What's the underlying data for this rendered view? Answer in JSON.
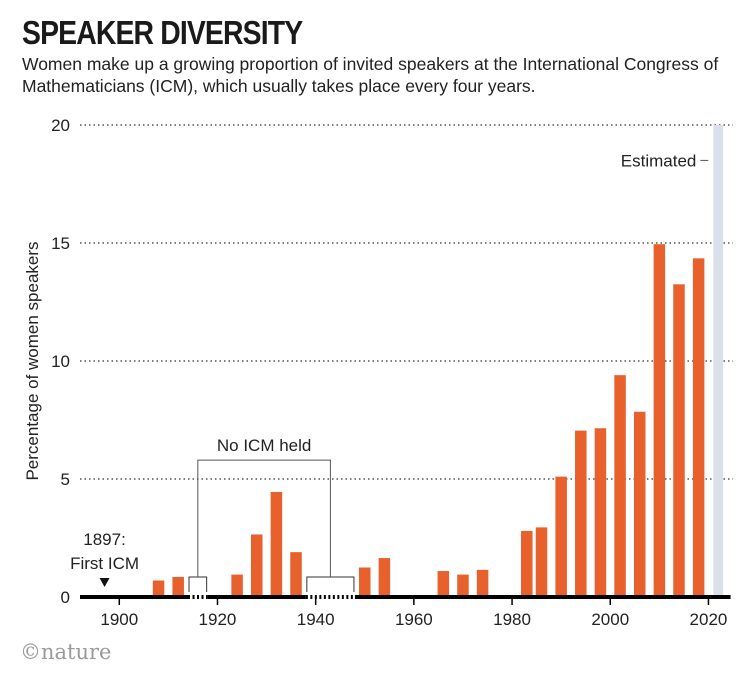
{
  "title": "SPEAKER DIVERSITY",
  "subtitle": "Women make up a growing proportion of invited speakers at the International Congress of Mathematicians (ICM), which usually takes place every four years.",
  "logo_text": "©nature",
  "chart_data": {
    "type": "bar",
    "ylabel": "Percentage of women speakers",
    "xlabel": "",
    "xlim": [
      1892,
      2025
    ],
    "ylim": [
      0,
      20
    ],
    "x_ticks": [
      1900,
      1920,
      1940,
      1960,
      1980,
      2000,
      2020
    ],
    "y_ticks": [
      0,
      5,
      10,
      15,
      20
    ],
    "grid": "horizontal dotted",
    "series": [
      {
        "color": "#e8602c",
        "points": [
          {
            "x": 1908,
            "y": 0.7
          },
          {
            "x": 1912,
            "y": 0.85
          },
          {
            "x": 1924,
            "y": 0.95
          },
          {
            "x": 1928,
            "y": 2.65
          },
          {
            "x": 1932,
            "y": 4.45
          },
          {
            "x": 1936,
            "y": 1.9
          },
          {
            "x": 1950,
            "y": 1.25
          },
          {
            "x": 1954,
            "y": 1.65
          },
          {
            "x": 1966,
            "y": 1.1
          },
          {
            "x": 1970,
            "y": 0.95
          },
          {
            "x": 1974,
            "y": 1.15
          },
          {
            "x": 1983,
            "y": 2.8
          },
          {
            "x": 1986,
            "y": 2.95
          },
          {
            "x": 1990,
            "y": 5.1
          },
          {
            "x": 1994,
            "y": 7.05
          },
          {
            "x": 1998,
            "y": 7.15
          },
          {
            "x": 2002,
            "y": 9.4
          },
          {
            "x": 2006,
            "y": 7.85
          },
          {
            "x": 2010,
            "y": 14.95
          },
          {
            "x": 2014,
            "y": 13.25
          },
          {
            "x": 2018,
            "y": 14.35
          }
        ]
      }
    ],
    "estimated_band": {
      "x_start": 2021,
      "x_end": 2023,
      "color": "#d9e0ec",
      "label": "Estimated"
    },
    "gaps": [
      {
        "x_start": 1914,
        "x_end": 1918
      },
      {
        "x_start": 1938,
        "x_end": 1948
      }
    ],
    "annotations": {
      "first_icm": {
        "x": 1897,
        "line1": "1897:",
        "line2": "First ICM"
      },
      "no_icm_held": {
        "label": "No ICM held",
        "x_start": 1916,
        "x_end": 1943,
        "y": 5.8
      }
    }
  }
}
